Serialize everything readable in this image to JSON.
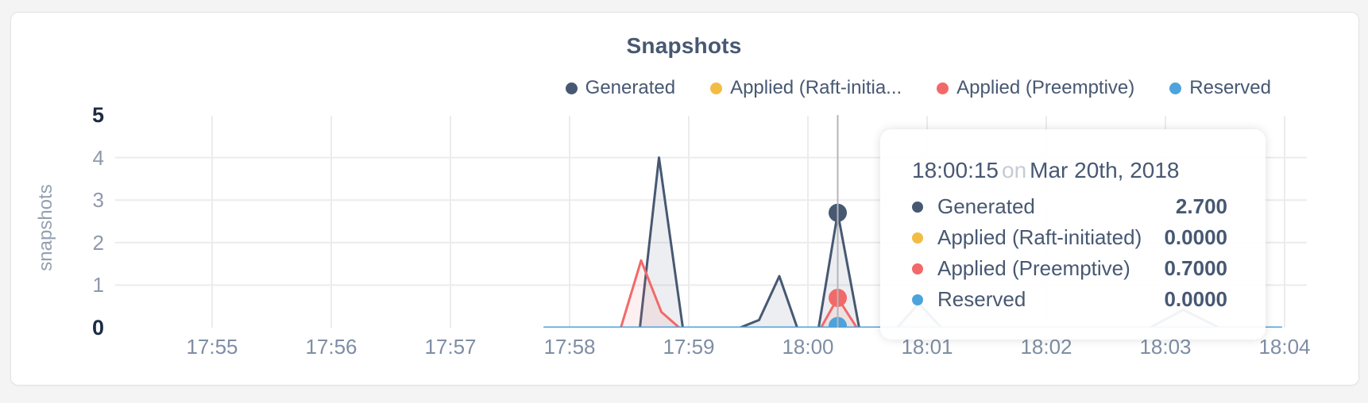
{
  "panel": {
    "title": "Snapshots"
  },
  "legend": {
    "items": [
      {
        "label": "Generated",
        "color": "#475872"
      },
      {
        "label": "Applied (Raft-initia...",
        "color": "#F2BC44"
      },
      {
        "label": "Applied (Preemptive)",
        "color": "#F26969"
      },
      {
        "label": "Reserved",
        "color": "#4DA3DC"
      }
    ]
  },
  "tooltip": {
    "time": "18:00:15",
    "conjunction": "on",
    "date": "Mar 20th, 2018",
    "rows": [
      {
        "label": "Generated",
        "value": "2.700",
        "color": "#475872"
      },
      {
        "label": "Applied (Raft-initiated)",
        "value": "0.0000",
        "color": "#F2BC44"
      },
      {
        "label": "Applied (Preemptive)",
        "value": "0.7000",
        "color": "#F26969"
      },
      {
        "label": "Reserved",
        "value": "0.0000",
        "color": "#4DA3DC"
      }
    ]
  },
  "chart_data": {
    "type": "area",
    "title": "Snapshots",
    "xlabel": "",
    "ylabel": "snapshots",
    "ylim": [
      0,
      5
    ],
    "grid": true,
    "legend_position": "top-right",
    "x_unit": "minutes after 17:55 on Mar 20th, 2018",
    "x_ticks": [
      {
        "t": 0,
        "label": "17:55"
      },
      {
        "t": 1,
        "label": "17:56"
      },
      {
        "t": 2,
        "label": "17:57"
      },
      {
        "t": 3,
        "label": "17:58"
      },
      {
        "t": 4,
        "label": "17:59"
      },
      {
        "t": 5,
        "label": "18:00"
      },
      {
        "t": 6,
        "label": "18:01"
      },
      {
        "t": 7,
        "label": "18:02"
      },
      {
        "t": 8,
        "label": "18:03"
      },
      {
        "t": 9,
        "label": "18:04"
      }
    ],
    "y_ticks": [
      {
        "v": 0,
        "label": "0",
        "grid": false,
        "emphasis": true
      },
      {
        "v": 1,
        "label": "1",
        "grid": true,
        "emphasis": false
      },
      {
        "v": 2,
        "label": "2",
        "grid": true,
        "emphasis": false
      },
      {
        "v": 3,
        "label": "3",
        "grid": true,
        "emphasis": false
      },
      {
        "v": 4,
        "label": "4",
        "grid": true,
        "emphasis": false
      },
      {
        "v": 5,
        "label": "5",
        "grid": false,
        "emphasis": true
      }
    ],
    "series": [
      {
        "name": "Generated",
        "color": "#475872",
        "fill": "rgba(71,88,114,0.10)",
        "points": [
          [
            2.79,
            0
          ],
          [
            3.4,
            0
          ],
          [
            3.59,
            0
          ],
          [
            3.75,
            4.0
          ],
          [
            3.95,
            0
          ],
          [
            4.43,
            0
          ],
          [
            4.59,
            0.18
          ],
          [
            4.76,
            1.21
          ],
          [
            4.91,
            0
          ],
          [
            5.09,
            0
          ],
          [
            5.25,
            2.7
          ],
          [
            5.43,
            0
          ],
          [
            5.75,
            0
          ],
          [
            5.93,
            0.57
          ],
          [
            6.12,
            0
          ],
          [
            7.87,
            0
          ],
          [
            8.15,
            0.42
          ],
          [
            8.45,
            0
          ],
          [
            8.97,
            0
          ]
        ]
      },
      {
        "name": "Applied (Raft-initiated)",
        "color": "#F2BC44",
        "fill": "none",
        "points": [
          [
            2.79,
            0
          ],
          [
            8.97,
            0
          ]
        ]
      },
      {
        "name": "Applied (Preemptive)",
        "color": "#F26969",
        "fill": "rgba(242,105,105,0.10)",
        "points": [
          [
            2.79,
            0
          ],
          [
            3.43,
            0
          ],
          [
            3.6,
            1.58
          ],
          [
            3.77,
            0.37
          ],
          [
            3.92,
            0
          ],
          [
            5.11,
            0
          ],
          [
            5.25,
            0.7
          ],
          [
            5.41,
            0
          ],
          [
            8.97,
            0
          ]
        ]
      },
      {
        "name": "Reserved",
        "color": "#4DA3DC",
        "fill": "none",
        "points": [
          [
            2.79,
            0
          ],
          [
            8.97,
            0
          ]
        ]
      }
    ],
    "hover": {
      "t": 5.25,
      "time_label": "18:00:15",
      "markers": [
        {
          "series": "Generated",
          "v": 2.7
        },
        {
          "series": "Applied (Raft-initiated)",
          "v": 0.0
        },
        {
          "series": "Applied (Preemptive)",
          "v": 0.7
        },
        {
          "series": "Reserved",
          "v": 0.0
        }
      ]
    }
  }
}
